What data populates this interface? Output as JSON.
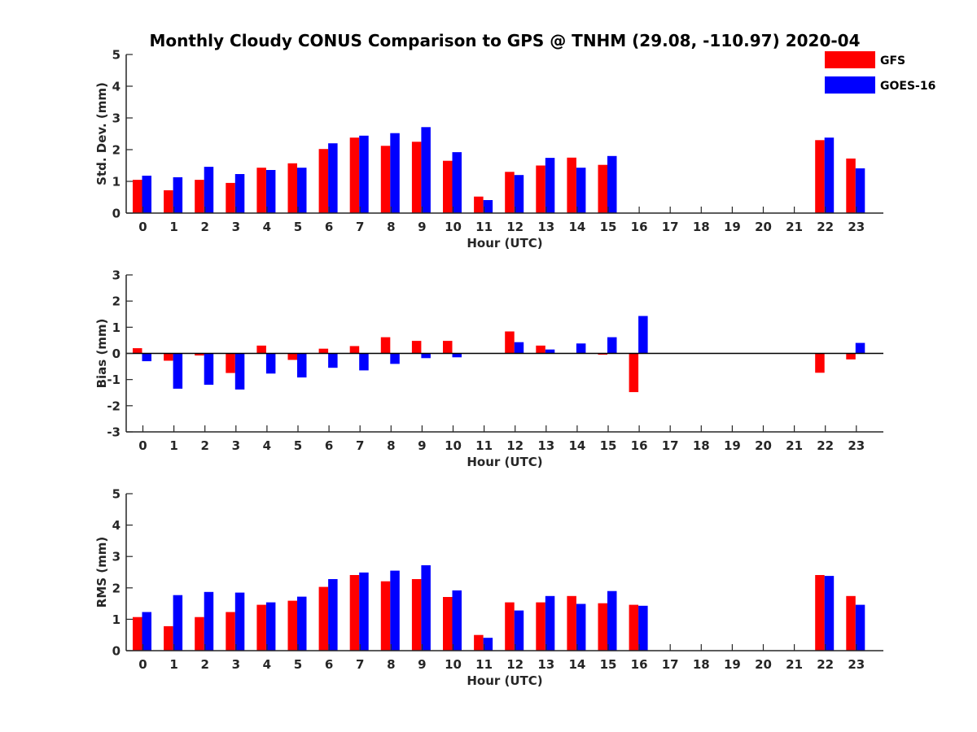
{
  "title": "Monthly Cloudy CONUS Comparison to GPS @ TNHM (29.08, -110.97) 2020-04",
  "legend": {
    "placement": "top-right",
    "entries": [
      {
        "name": "GFS",
        "color": "#ff0000"
      },
      {
        "name": "GOES-16",
        "color": "#0000ff"
      }
    ]
  },
  "chart_data": [
    {
      "type": "bar",
      "xlabel": "Hour (UTC)",
      "ylabel": "Std. Dev. (mm)",
      "ylim": [
        0,
        5
      ],
      "yticks": [
        0,
        1,
        2,
        3,
        4,
        5
      ],
      "categories": [
        "0",
        "1",
        "2",
        "3",
        "4",
        "5",
        "6",
        "7",
        "8",
        "9",
        "10",
        "11",
        "12",
        "13",
        "14",
        "15",
        "16",
        "17",
        "18",
        "19",
        "20",
        "21",
        "22",
        "23"
      ],
      "series": [
        {
          "name": "GFS",
          "color": "#ff0000",
          "values": [
            1.05,
            0.72,
            1.05,
            0.95,
            1.43,
            1.57,
            2.02,
            2.38,
            2.12,
            2.25,
            1.65,
            0.52,
            1.3,
            1.5,
            1.75,
            1.52,
            null,
            null,
            null,
            null,
            null,
            null,
            2.3,
            1.72
          ]
        },
        {
          "name": "GOES-16",
          "color": "#0000ff",
          "values": [
            1.18,
            1.13,
            1.46,
            1.23,
            1.36,
            1.43,
            2.2,
            2.44,
            2.52,
            2.71,
            1.92,
            0.41,
            1.2,
            1.74,
            1.43,
            1.8,
            null,
            null,
            null,
            null,
            null,
            null,
            2.38,
            1.41
          ]
        }
      ]
    },
    {
      "type": "bar",
      "xlabel": "Hour (UTC)",
      "ylabel": "Bias (mm)",
      "ylim": [
        -3,
        3
      ],
      "yticks": [
        -3,
        -2,
        -1,
        0,
        1,
        2,
        3
      ],
      "categories": [
        "0",
        "1",
        "2",
        "3",
        "4",
        "5",
        "6",
        "7",
        "8",
        "9",
        "10",
        "11",
        "12",
        "13",
        "14",
        "15",
        "16",
        "17",
        "18",
        "19",
        "20",
        "21",
        "22",
        "23"
      ],
      "series": [
        {
          "name": "GFS",
          "color": "#ff0000",
          "values": [
            0.2,
            -0.28,
            -0.08,
            -0.75,
            0.3,
            -0.25,
            0.18,
            0.28,
            0.62,
            0.48,
            0.48,
            null,
            0.84,
            0.3,
            null,
            -0.05,
            -1.48,
            null,
            null,
            null,
            null,
            null,
            -0.74,
            -0.23
          ]
        },
        {
          "name": "GOES-16",
          "color": "#0000ff",
          "values": [
            -0.3,
            -1.35,
            -1.2,
            -1.38,
            -0.77,
            -0.92,
            -0.55,
            -0.65,
            -0.4,
            -0.18,
            -0.15,
            null,
            0.43,
            0.15,
            0.38,
            0.62,
            1.43,
            null,
            null,
            null,
            null,
            null,
            null,
            0.4
          ]
        }
      ]
    },
    {
      "type": "bar",
      "xlabel": "Hour (UTC)",
      "ylabel": "RMS (mm)",
      "ylim": [
        0,
        5
      ],
      "yticks": [
        0,
        1,
        2,
        3,
        4,
        5
      ],
      "categories": [
        "0",
        "1",
        "2",
        "3",
        "4",
        "5",
        "6",
        "7",
        "8",
        "9",
        "10",
        "11",
        "12",
        "13",
        "14",
        "15",
        "16",
        "17",
        "18",
        "19",
        "20",
        "21",
        "22",
        "23"
      ],
      "series": [
        {
          "name": "GFS",
          "color": "#ff0000",
          "values": [
            1.07,
            0.78,
            1.07,
            1.23,
            1.46,
            1.59,
            2.03,
            2.41,
            2.21,
            2.28,
            1.71,
            0.5,
            1.54,
            1.54,
            1.74,
            1.51,
            1.46,
            null,
            null,
            null,
            null,
            null,
            2.41,
            1.74
          ]
        },
        {
          "name": "GOES-16",
          "color": "#0000ff",
          "values": [
            1.23,
            1.77,
            1.87,
            1.85,
            1.54,
            1.72,
            2.28,
            2.49,
            2.55,
            2.72,
            1.92,
            0.41,
            1.28,
            1.74,
            1.49,
            1.9,
            1.43,
            null,
            null,
            null,
            null,
            null,
            2.38,
            1.46
          ]
        }
      ]
    }
  ]
}
